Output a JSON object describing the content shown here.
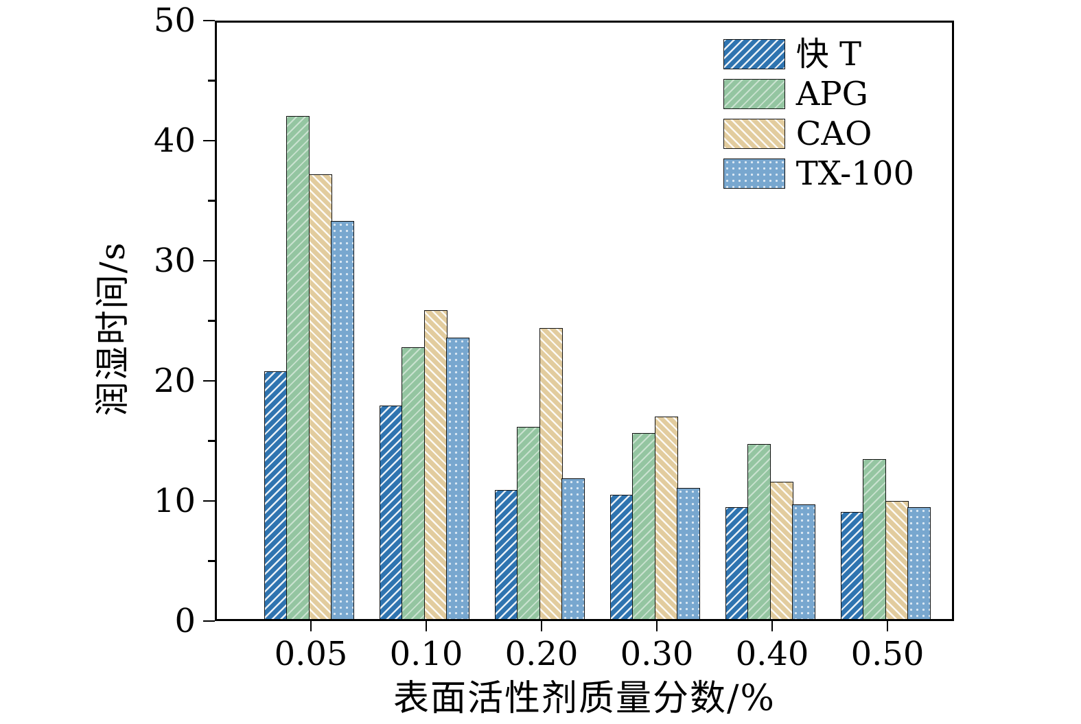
{
  "chart_data": {
    "type": "bar",
    "title": "",
    "xlabel": "表面活性剂质量分数/%",
    "ylabel": "润湿时间/s",
    "categories": [
      "0.05",
      "0.10",
      "0.20",
      "0.30",
      "0.40",
      "0.50"
    ],
    "series": [
      {
        "name": "快 T",
        "color": "#2f74b0",
        "pattern": "diagonal-up",
        "values": [
          20.8,
          17.9,
          10.8,
          10.4,
          9.4,
          9.0
        ]
      },
      {
        "name": "APG",
        "color": "#94c5a1",
        "pattern": "diagonal-up-light",
        "values": [
          42.2,
          22.8,
          16.1,
          15.6,
          14.7,
          13.4
        ]
      },
      {
        "name": "CAO",
        "color": "#e2cc9e",
        "pattern": "diagonal-down",
        "values": [
          37.3,
          25.9,
          24.4,
          17.0,
          11.5,
          9.9
        ]
      },
      {
        "name": "TX-100",
        "color": "#78a7cf",
        "pattern": "dots",
        "values": [
          33.4,
          23.6,
          11.8,
          11.0,
          9.6,
          9.4
        ]
      }
    ],
    "ylim": [
      0,
      50
    ],
    "yticks": [
      0,
      10,
      20,
      30,
      40,
      50
    ],
    "yticks_minor": [
      5,
      15,
      25,
      35,
      45
    ],
    "legend_position": "top-right",
    "grid": false
  }
}
